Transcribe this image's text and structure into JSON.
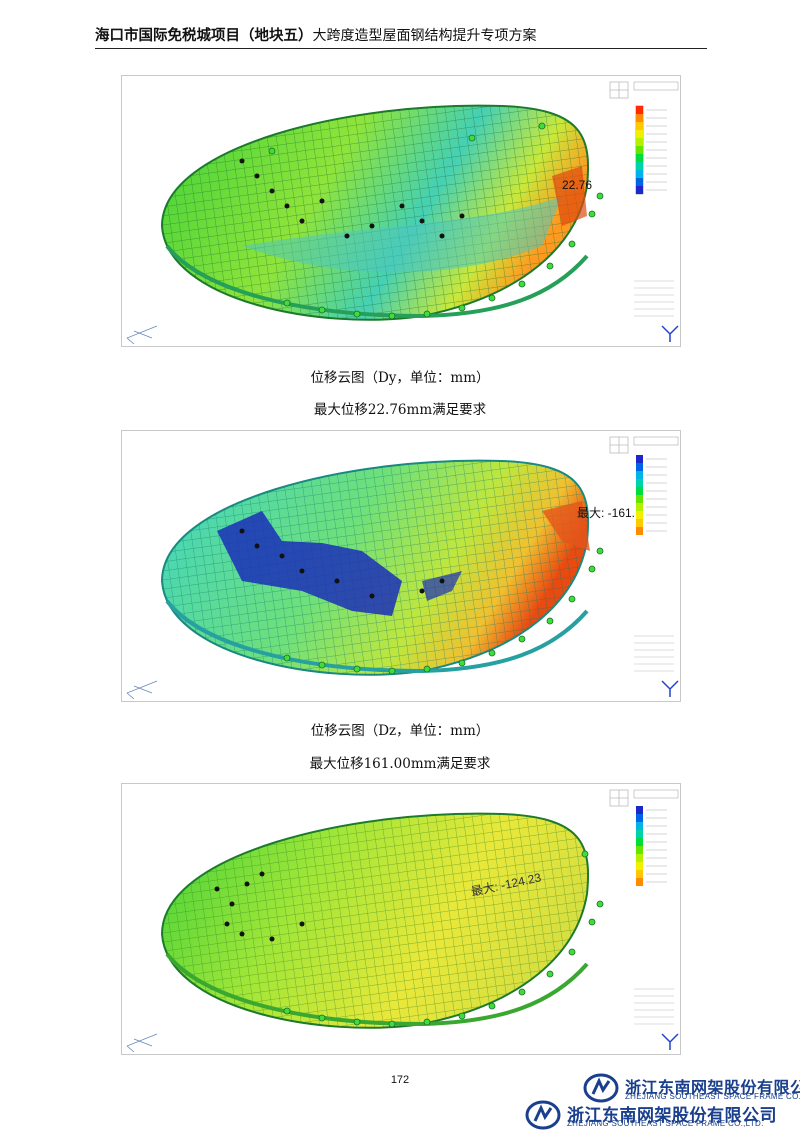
{
  "header": {
    "title_bold": "海口市国际免税城项目（地块五）",
    "title_rest": "大跨度造型屋面钢结构提升专项方案"
  },
  "figures": [
    {
      "caption": "位移云图（Dy，单位：mm）",
      "note": "最大位移22.76mm满足要求",
      "max_label": "22.76"
    },
    {
      "caption": "位移云图（Dz，单位：mm）",
      "note": "最大位移161.00mm满足要求",
      "max_label": "最大: -161."
    },
    {
      "caption": "",
      "note": "",
      "max_label": "最大: -124.23"
    }
  ],
  "page_number": "172",
  "company": {
    "name_cn": "浙江东南网架股份有限公司",
    "name_en": "ZHEJIANG SOUTHEAST SPACE FRAME CO.,LTD."
  },
  "colors": {
    "legend": [
      "#ff2a00",
      "#ff8c00",
      "#ffc800",
      "#f0f000",
      "#b4f000",
      "#64e600",
      "#00dc3c",
      "#00d2aa",
      "#00b4e6",
      "#0064e6",
      "#1e28c8"
    ]
  }
}
